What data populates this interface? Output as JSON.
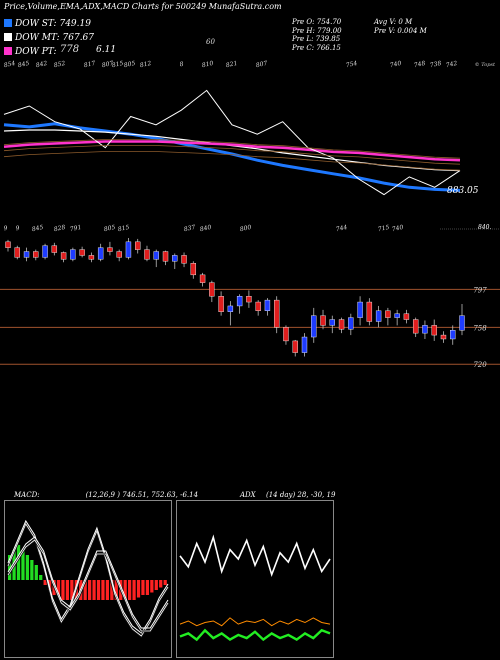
{
  "header": {
    "title": "Price,Volume,EMA,ADX,MACD Charts for 500249 MunafaSutra.com"
  },
  "legend": [
    {
      "label": "DOW ST:",
      "value": "749.19",
      "color": "#1e78ff"
    },
    {
      "label": "DOW MT:",
      "value": "767.67",
      "color": "#ffffff"
    },
    {
      "label": "DOW PT:",
      "value": "",
      "color": "#ff33cc"
    }
  ],
  "legend_extra": {
    "pt_overlay": "778",
    "six": "6.11",
    "sixty": "60"
  },
  "ohlc": {
    "col1": [
      "Pre O: 754.70",
      "Pre H: 779.00",
      "Pre L: 739.85",
      "Pre C: 766.15"
    ],
    "col2": [
      "Avg V: 0  M",
      "Pre V: 0.004  M"
    ]
  },
  "top_tick_row": [
    "854",
    "845",
    "842",
    "852",
    "817",
    "807",
    "815",
    "805",
    "812",
    "8",
    "810",
    "821",
    "807",
    "754",
    "740",
    "748",
    "738",
    "742"
  ],
  "top_tick_right": "© Topst",
  "price_end_label": "883.05",
  "mid_tick_row": [
    "9",
    "9",
    "845",
    "828",
    "791",
    "805",
    "815",
    "837",
    "840",
    "800",
    "744",
    "715",
    "740"
  ],
  "mid_right_label": "840.",
  "level_labels": [
    "797",
    "758",
    "720"
  ],
  "macd_header": {
    "label": "MACD:",
    "value": "(12,26,9 ) 746.51, 752.63, -6.14"
  },
  "adx_header": {
    "label": "ADX",
    "value": "(14  day) 28, -30, 19"
  },
  "colors": {
    "up": "#1e3cff",
    "down": "#e01e1e",
    "level": "#a0522d",
    "macd_pos": "#22dd22",
    "macd_neg": "#ff2222",
    "adx_plus": "#22ee22",
    "adx_minus": "#ff8c00",
    "dx": "#ffffff"
  },
  "chart_data": [
    {
      "type": "line",
      "name": "price-ema-panel",
      "series": [
        {
          "name": "DOW ST",
          "values": [
            812,
            810,
            813,
            809,
            806,
            803,
            799,
            794,
            789,
            784,
            778,
            773,
            769,
            765,
            761,
            756,
            752,
            750,
            749
          ]
        },
        {
          "name": "DOW MT",
          "values": [
            806,
            807,
            807,
            806,
            805,
            803,
            801,
            798,
            795,
            792,
            789,
            785,
            782,
            779,
            776,
            773,
            771,
            769,
            768
          ]
        },
        {
          "name": "DOW PT",
          "values": [
            791,
            793,
            794,
            795,
            796,
            796,
            796,
            795,
            794,
            793,
            791,
            790,
            788,
            786,
            785,
            783,
            781,
            779,
            778
          ]
        },
        {
          "name": "price",
          "values": [
            822,
            830,
            815,
            808,
            790,
            820,
            812,
            826,
            845,
            812,
            803,
            815,
            790,
            780,
            760,
            745,
            762,
            752,
            768
          ]
        }
      ]
    },
    {
      "type": "candlestick",
      "name": "candles",
      "candles": [
        [
          846,
          848,
          836,
          840
        ],
        [
          840,
          842,
          828,
          830
        ],
        [
          830,
          840,
          826,
          836
        ],
        [
          836,
          838,
          827,
          830
        ],
        [
          830,
          844,
          828,
          842
        ],
        [
          842,
          845,
          832,
          835
        ],
        [
          835,
          836,
          825,
          828
        ],
        [
          828,
          840,
          826,
          838
        ],
        [
          838,
          841,
          830,
          832
        ],
        [
          832,
          835,
          825,
          828
        ],
        [
          828,
          844,
          826,
          840
        ],
        [
          840,
          846,
          832,
          836
        ],
        [
          836,
          838,
          826,
          830
        ],
        [
          830,
          850,
          828,
          846
        ],
        [
          846,
          849,
          834,
          838
        ],
        [
          838,
          842,
          826,
          828
        ],
        [
          828,
          838,
          820,
          836
        ],
        [
          836,
          837,
          822,
          826
        ],
        [
          826,
          834,
          818,
          832
        ],
        [
          832,
          835,
          820,
          824
        ],
        [
          824,
          826,
          808,
          812
        ],
        [
          812,
          814,
          800,
          804
        ],
        [
          804,
          806,
          784,
          790
        ],
        [
          790,
          795,
          770,
          774
        ],
        [
          774,
          785,
          760,
          780
        ],
        [
          780,
          792,
          772,
          790
        ],
        [
          790,
          796,
          778,
          784
        ],
        [
          784,
          786,
          770,
          775
        ],
        [
          775,
          788,
          770,
          786
        ],
        [
          786,
          790,
          752,
          758
        ],
        [
          758,
          760,
          740,
          744
        ],
        [
          744,
          745,
          728,
          732
        ],
        [
          732,
          752,
          728,
          748
        ],
        [
          748,
          778,
          742,
          770
        ],
        [
          770,
          776,
          756,
          760
        ],
        [
          760,
          770,
          752,
          766
        ],
        [
          766,
          768,
          752,
          756
        ],
        [
          756,
          772,
          750,
          768
        ],
        [
          768,
          790,
          760,
          784
        ],
        [
          784,
          788,
          760,
          764
        ],
        [
          764,
          780,
          758,
          775
        ],
        [
          775,
          778,
          760,
          768
        ],
        [
          768,
          776,
          760,
          772
        ],
        [
          772,
          776,
          762,
          766
        ],
        [
          766,
          768,
          748,
          752
        ],
        [
          752,
          765,
          746,
          760
        ],
        [
          760,
          766,
          744,
          750
        ],
        [
          750,
          754,
          742,
          746
        ],
        [
          746,
          760,
          740,
          755
        ],
        [
          755,
          782,
          750,
          770
        ]
      ]
    },
    {
      "type": "bar",
      "name": "macd-panel",
      "series": [
        {
          "name": "MACD",
          "values": [
            2,
            5,
            8,
            6,
            2,
            -3,
            -6,
            -4,
            0,
            4,
            7,
            3,
            -2,
            -5,
            -7,
            -8,
            -6,
            -3,
            -1
          ]
        },
        {
          "name": "signal",
          "values": [
            1,
            3,
            5,
            6,
            4,
            0,
            -3,
            -4,
            -2,
            1,
            4,
            4,
            1,
            -2,
            -5,
            -7,
            -7,
            -5,
            -3
          ]
        }
      ],
      "histogram": [
        5,
        6,
        7,
        6,
        5,
        4,
        3,
        1,
        -1,
        -2,
        -3,
        -3,
        -4,
        -4,
        -4,
        -4,
        -4,
        -4,
        -4,
        -4,
        -4,
        -4,
        -4,
        -4,
        -4,
        -4,
        -4,
        -4,
        -4,
        -3.5,
        -3,
        -3,
        -2.5,
        -2,
        -1.5,
        -1
      ]
    },
    {
      "type": "line",
      "name": "adx-panel",
      "series": [
        {
          "name": "DX",
          "values": [
            62,
            55,
            70,
            58,
            74,
            52,
            66,
            60,
            72,
            56,
            68,
            50,
            64,
            58,
            70,
            54,
            66,
            52,
            60
          ]
        },
        {
          "name": "+DI",
          "values": [
            10,
            12,
            8,
            14,
            9,
            12,
            8,
            11,
            9,
            13,
            8,
            12,
            9,
            11,
            8,
            12,
            9,
            14,
            12
          ]
        },
        {
          "name": "-DI",
          "values": [
            18,
            20,
            17,
            19,
            20,
            17,
            22,
            18,
            20,
            19,
            21,
            17,
            20,
            18,
            21,
            19,
            22,
            19,
            18
          ]
        }
      ]
    }
  ]
}
